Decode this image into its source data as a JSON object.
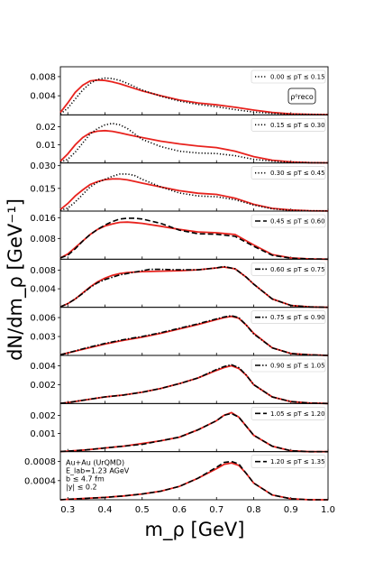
{
  "chart_data": {
    "type": "line",
    "xlabel": "m_ρ [GeV]",
    "ylabel": "dN/dm_ρ [GeV⁻¹]",
    "xlim": [
      0.28,
      1.0
    ],
    "xticks": [
      "0.3",
      "0.4",
      "0.5",
      "0.6",
      "0.7",
      "0.8",
      "0.9",
      "1.0"
    ],
    "xtick_values": [
      0.3,
      0.4,
      0.5,
      0.6,
      0.7,
      0.8,
      0.9,
      1.0
    ],
    "panel_label": "ρ⁰reco",
    "annotation": [
      "Au+Au (UrQMD)",
      "E_lab=1.23 AGeV",
      "b ≤ 4.7 fm",
      "|y| ≤ 0.2"
    ],
    "colors": {
      "model": "#e8231e",
      "data": "#000000",
      "axes": "#000000"
    },
    "panels": [
      {
        "legend": "0.00 ≤ pT ≤ 0.15",
        "style": "dotted",
        "ylim": [
          0,
          0.0095
        ],
        "yticks": [
          0.004,
          0.008
        ],
        "ytick_labels": [
          "0.004",
          "0.008"
        ],
        "data_x": [
          0.28,
          0.3,
          0.32,
          0.34,
          0.36,
          0.38,
          0.4,
          0.42,
          0.44,
          0.46,
          0.48,
          0.5,
          0.55,
          0.6,
          0.65,
          0.7,
          0.75,
          0.8,
          0.85,
          0.9,
          0.95,
          1.0
        ],
        "data_y": [
          0.0002,
          0.0014,
          0.0033,
          0.0052,
          0.0066,
          0.0074,
          0.0077,
          0.0076,
          0.0072,
          0.0066,
          0.0059,
          0.0052,
          0.0039,
          0.0029,
          0.0022,
          0.0017,
          0.0011,
          0.0006,
          0.0003,
          0.00015,
          0.0001,
          5e-05
        ],
        "model_x": [
          0.28,
          0.3,
          0.32,
          0.34,
          0.36,
          0.38,
          0.4,
          0.42,
          0.44,
          0.46,
          0.48,
          0.5,
          0.55,
          0.6,
          0.65,
          0.7,
          0.75,
          0.8,
          0.85,
          0.9,
          0.95,
          1.0
        ],
        "model_y": [
          0.0005,
          0.0025,
          0.0047,
          0.0062,
          0.0071,
          0.0073,
          0.0072,
          0.0069,
          0.0065,
          0.006,
          0.0055,
          0.005,
          0.004,
          0.0031,
          0.0025,
          0.0021,
          0.0016,
          0.001,
          0.0005,
          0.0002,
          0.0001,
          5e-05
        ]
      },
      {
        "legend": "0.15 ≤ pT ≤ 0.30",
        "style": "dotted",
        "ylim": [
          0,
          0.025
        ],
        "yticks": [
          0.01,
          0.02
        ],
        "ytick_labels": [
          "0.01",
          "0.02"
        ],
        "data_x": [
          0.28,
          0.3,
          0.32,
          0.34,
          0.36,
          0.38,
          0.4,
          0.42,
          0.44,
          0.46,
          0.48,
          0.5,
          0.55,
          0.6,
          0.65,
          0.7,
          0.75,
          0.8,
          0.85,
          0.9,
          0.95,
          1.0
        ],
        "data_y": [
          0.0005,
          0.002,
          0.006,
          0.011,
          0.016,
          0.019,
          0.021,
          0.0218,
          0.021,
          0.019,
          0.016,
          0.013,
          0.009,
          0.0065,
          0.0055,
          0.0052,
          0.004,
          0.002,
          0.001,
          0.0004,
          0.0002,
          0.0001
        ],
        "model_x": [
          0.28,
          0.3,
          0.32,
          0.34,
          0.36,
          0.38,
          0.4,
          0.42,
          0.44,
          0.46,
          0.48,
          0.5,
          0.55,
          0.6,
          0.65,
          0.7,
          0.75,
          0.8,
          0.85,
          0.9,
          0.95,
          1.0
        ],
        "model_y": [
          0.001,
          0.005,
          0.01,
          0.014,
          0.0165,
          0.0175,
          0.0178,
          0.0174,
          0.0166,
          0.0157,
          0.0148,
          0.014,
          0.012,
          0.0105,
          0.0093,
          0.0085,
          0.0065,
          0.0035,
          0.0015,
          0.0006,
          0.0002,
          0.0001
        ]
      },
      {
        "legend": "0.30 ≤ pT ≤ 0.45",
        "style": "dotted",
        "ylim": [
          0,
          0.03
        ],
        "yticks": [
          0.015,
          0.03
        ],
        "ytick_labels": [
          "0.015",
          "0.030"
        ],
        "data_x": [
          0.28,
          0.3,
          0.32,
          0.34,
          0.36,
          0.38,
          0.4,
          0.42,
          0.44,
          0.46,
          0.48,
          0.5,
          0.55,
          0.6,
          0.65,
          0.7,
          0.75,
          0.8,
          0.85,
          0.9,
          0.95,
          1.0
        ],
        "data_y": [
          0.0005,
          0.002,
          0.006,
          0.011,
          0.016,
          0.019,
          0.021,
          0.023,
          0.0245,
          0.0245,
          0.0235,
          0.021,
          0.016,
          0.012,
          0.01,
          0.0095,
          0.0075,
          0.004,
          0.0015,
          0.0005,
          0.0002,
          0.0001
        ],
        "model_x": [
          0.28,
          0.3,
          0.32,
          0.34,
          0.36,
          0.38,
          0.4,
          0.42,
          0.44,
          0.46,
          0.48,
          0.5,
          0.55,
          0.6,
          0.65,
          0.7,
          0.75,
          0.8,
          0.85,
          0.9,
          0.95,
          1.0
        ],
        "model_y": [
          0.001,
          0.005,
          0.01,
          0.014,
          0.0175,
          0.0195,
          0.0208,
          0.0213,
          0.0212,
          0.0206,
          0.0196,
          0.0185,
          0.016,
          0.0135,
          0.0118,
          0.011,
          0.0085,
          0.0045,
          0.0018,
          0.0007,
          0.0002,
          0.0001
        ]
      },
      {
        "legend": "0.45 ≤ pT ≤ 0.60",
        "style": "dashed",
        "ylim": [
          0,
          0.0175
        ],
        "yticks": [
          0.008,
          0.016
        ],
        "ytick_labels": [
          "0.008",
          "0.016"
        ],
        "data_x": [
          0.28,
          0.3,
          0.32,
          0.34,
          0.36,
          0.38,
          0.4,
          0.42,
          0.44,
          0.46,
          0.48,
          0.5,
          0.55,
          0.6,
          0.65,
          0.7,
          0.75,
          0.8,
          0.85,
          0.9,
          0.95,
          1.0
        ],
        "data_y": [
          0.0005,
          0.0015,
          0.004,
          0.007,
          0.0095,
          0.0115,
          0.0132,
          0.0145,
          0.0155,
          0.0158,
          0.0158,
          0.0155,
          0.0138,
          0.0112,
          0.0098,
          0.0096,
          0.0088,
          0.005,
          0.0015,
          0.0004,
          0.0001,
          0.0
        ],
        "model_x": [
          0.28,
          0.3,
          0.32,
          0.34,
          0.36,
          0.38,
          0.4,
          0.42,
          0.44,
          0.46,
          0.48,
          0.5,
          0.55,
          0.6,
          0.65,
          0.7,
          0.75,
          0.8,
          0.85,
          0.9,
          0.95,
          1.0
        ],
        "model_y": [
          0.0005,
          0.002,
          0.0045,
          0.007,
          0.0095,
          0.0115,
          0.0128,
          0.0136,
          0.0142,
          0.0143,
          0.0141,
          0.0138,
          0.0127,
          0.0115,
          0.0105,
          0.0102,
          0.0095,
          0.0055,
          0.0018,
          0.0005,
          0.0001,
          0.0
        ]
      },
      {
        "legend": "0.60 ≤ pT ≤ 0.75",
        "style": "dashdot",
        "ylim": [
          0,
          0.0098
        ],
        "yticks": [
          0.004,
          0.008
        ],
        "ytick_labels": [
          "0.004",
          "0.008"
        ],
        "data_x": [
          0.28,
          0.3,
          0.32,
          0.34,
          0.36,
          0.38,
          0.4,
          0.42,
          0.44,
          0.46,
          0.48,
          0.5,
          0.52,
          0.55,
          0.6,
          0.65,
          0.7,
          0.72,
          0.75,
          0.78,
          0.8,
          0.85,
          0.9,
          0.95,
          1.0
        ],
        "data_y": [
          0.0001,
          0.0008,
          0.0018,
          0.003,
          0.0043,
          0.0053,
          0.006,
          0.0065,
          0.007,
          0.0073,
          0.0076,
          0.0079,
          0.0082,
          0.0082,
          0.0081,
          0.0081,
          0.0085,
          0.0088,
          0.0083,
          0.0065,
          0.005,
          0.0018,
          0.0004,
          0.0001,
          0.0
        ],
        "model_x": [
          0.28,
          0.3,
          0.32,
          0.34,
          0.36,
          0.38,
          0.4,
          0.42,
          0.44,
          0.46,
          0.48,
          0.5,
          0.55,
          0.6,
          0.65,
          0.7,
          0.72,
          0.75,
          0.78,
          0.8,
          0.85,
          0.9,
          0.95,
          1.0
        ],
        "model_y": [
          0.0001,
          0.0008,
          0.0018,
          0.0031,
          0.0044,
          0.0055,
          0.0063,
          0.0069,
          0.0073,
          0.0075,
          0.0076,
          0.0077,
          0.0078,
          0.0079,
          0.0081,
          0.0085,
          0.0087,
          0.0083,
          0.0065,
          0.005,
          0.0018,
          0.0004,
          0.0001,
          0.0
        ]
      },
      {
        "legend": "0.75 ≤ pT ≤ 0.90",
        "style": "dashdot",
        "ylim": [
          0,
          0.0072
        ],
        "yticks": [
          0.003,
          0.006
        ],
        "ytick_labels": [
          "0.003",
          "0.006"
        ],
        "data_x": [
          0.28,
          0.3,
          0.35,
          0.4,
          0.45,
          0.5,
          0.55,
          0.6,
          0.65,
          0.7,
          0.72,
          0.74,
          0.76,
          0.78,
          0.8,
          0.85,
          0.9,
          0.95,
          1.0
        ],
        "data_y": [
          0.0001,
          0.0004,
          0.0012,
          0.0019,
          0.0025,
          0.003,
          0.0036,
          0.0043,
          0.005,
          0.0058,
          0.0061,
          0.0063,
          0.006,
          0.0048,
          0.0034,
          0.0012,
          0.0003,
          0.0001,
          0.0
        ],
        "model_x": [
          0.28,
          0.3,
          0.35,
          0.4,
          0.45,
          0.5,
          0.55,
          0.6,
          0.65,
          0.7,
          0.72,
          0.74,
          0.76,
          0.78,
          0.8,
          0.85,
          0.9,
          0.95,
          1.0
        ],
        "model_y": [
          0.0001,
          0.0004,
          0.0011,
          0.0018,
          0.0024,
          0.0029,
          0.0035,
          0.0042,
          0.0049,
          0.0057,
          0.006,
          0.0062,
          0.0059,
          0.0048,
          0.0035,
          0.0012,
          0.0003,
          0.0001,
          0.0
        ]
      },
      {
        "legend": "0.90 ≤ pT ≤ 1.05",
        "style": "dashdot",
        "ylim": [
          0,
          0.0048
        ],
        "yticks": [
          0.002,
          0.004
        ],
        "ytick_labels": [
          "0.002",
          "0.004"
        ],
        "data_x": [
          0.28,
          0.3,
          0.35,
          0.4,
          0.45,
          0.5,
          0.55,
          0.6,
          0.65,
          0.7,
          0.72,
          0.74,
          0.76,
          0.78,
          0.8,
          0.85,
          0.9,
          0.95,
          1.0
        ],
        "data_y": [
          2e-05,
          0.0001,
          0.0004,
          0.0007,
          0.0009,
          0.0012,
          0.0016,
          0.0021,
          0.0027,
          0.0036,
          0.0039,
          0.0041,
          0.0038,
          0.003,
          0.002,
          0.0007,
          0.0002,
          5e-05,
          0.0
        ],
        "model_x": [
          0.28,
          0.3,
          0.35,
          0.4,
          0.45,
          0.5,
          0.55,
          0.6,
          0.65,
          0.7,
          0.72,
          0.74,
          0.76,
          0.78,
          0.8,
          0.85,
          0.9,
          0.95,
          1.0
        ],
        "model_y": [
          2e-05,
          0.0001,
          0.0004,
          0.0007,
          0.0009,
          0.0012,
          0.0016,
          0.0021,
          0.0027,
          0.0035,
          0.0038,
          0.004,
          0.0037,
          0.003,
          0.002,
          0.0007,
          0.0002,
          5e-05,
          0.0
        ]
      },
      {
        "legend": "1.05 ≤ pT ≤ 1.20",
        "style": "dashed",
        "ylim": [
          0,
          0.0025
        ],
        "yticks": [
          0.001,
          0.002
        ],
        "ytick_labels": [
          "0.001",
          "0.002"
        ],
        "data_x": [
          0.28,
          0.3,
          0.35,
          0.4,
          0.45,
          0.5,
          0.55,
          0.6,
          0.65,
          0.7,
          0.72,
          0.74,
          0.76,
          0.78,
          0.8,
          0.85,
          0.9,
          0.95,
          1.0
        ],
        "data_y": [
          1e-05,
          3e-05,
          0.0001,
          0.0002,
          0.0003,
          0.0004,
          0.0006,
          0.0008,
          0.0012,
          0.0017,
          0.002,
          0.0021,
          0.0019,
          0.0014,
          0.0009,
          0.0003,
          5e-05,
          0.0,
          0.0
        ],
        "model_x": [
          0.28,
          0.3,
          0.35,
          0.4,
          0.45,
          0.5,
          0.55,
          0.6,
          0.65,
          0.7,
          0.72,
          0.74,
          0.76,
          0.78,
          0.8,
          0.85,
          0.9,
          0.95,
          1.0
        ],
        "model_y": [
          1e-05,
          3e-05,
          0.0001,
          0.0002,
          0.0003,
          0.00045,
          0.0006,
          0.0008,
          0.0012,
          0.0017,
          0.002,
          0.00215,
          0.0019,
          0.0014,
          0.0009,
          0.0003,
          5e-05,
          0.0,
          0.0
        ]
      },
      {
        "legend": "1.20 ≤ pT ≤ 1.35",
        "style": "dashed",
        "ylim": [
          0,
          0.00095
        ],
        "yticks": [
          0.0004,
          0.0008
        ],
        "ytick_labels": [
          "0.0004",
          "0.0008"
        ],
        "data_x": [
          0.28,
          0.3,
          0.35,
          0.4,
          0.45,
          0.5,
          0.55,
          0.6,
          0.65,
          0.7,
          0.72,
          0.74,
          0.76,
          0.78,
          0.8,
          0.85,
          0.9,
          0.95,
          1.0
        ],
        "data_y": [
          0.0,
          1e-05,
          3e-05,
          5e-05,
          8e-05,
          0.00012,
          0.00018,
          0.00028,
          0.00045,
          0.00068,
          0.00078,
          0.0008,
          0.00075,
          0.00055,
          0.00035,
          0.0001,
          2e-05,
          0.0,
          0.0
        ],
        "model_x": [
          0.28,
          0.3,
          0.35,
          0.4,
          0.45,
          0.5,
          0.55,
          0.6,
          0.65,
          0.7,
          0.72,
          0.74,
          0.76,
          0.78,
          0.8,
          0.85,
          0.9,
          0.95,
          1.0
        ],
        "model_y": [
          0.0,
          1e-05,
          3e-05,
          5e-05,
          8e-05,
          0.00012,
          0.00018,
          0.00028,
          0.00045,
          0.00065,
          0.00074,
          0.00077,
          0.00072,
          0.00055,
          0.00035,
          0.0001,
          2e-05,
          0.0,
          0.0
        ]
      }
    ]
  }
}
